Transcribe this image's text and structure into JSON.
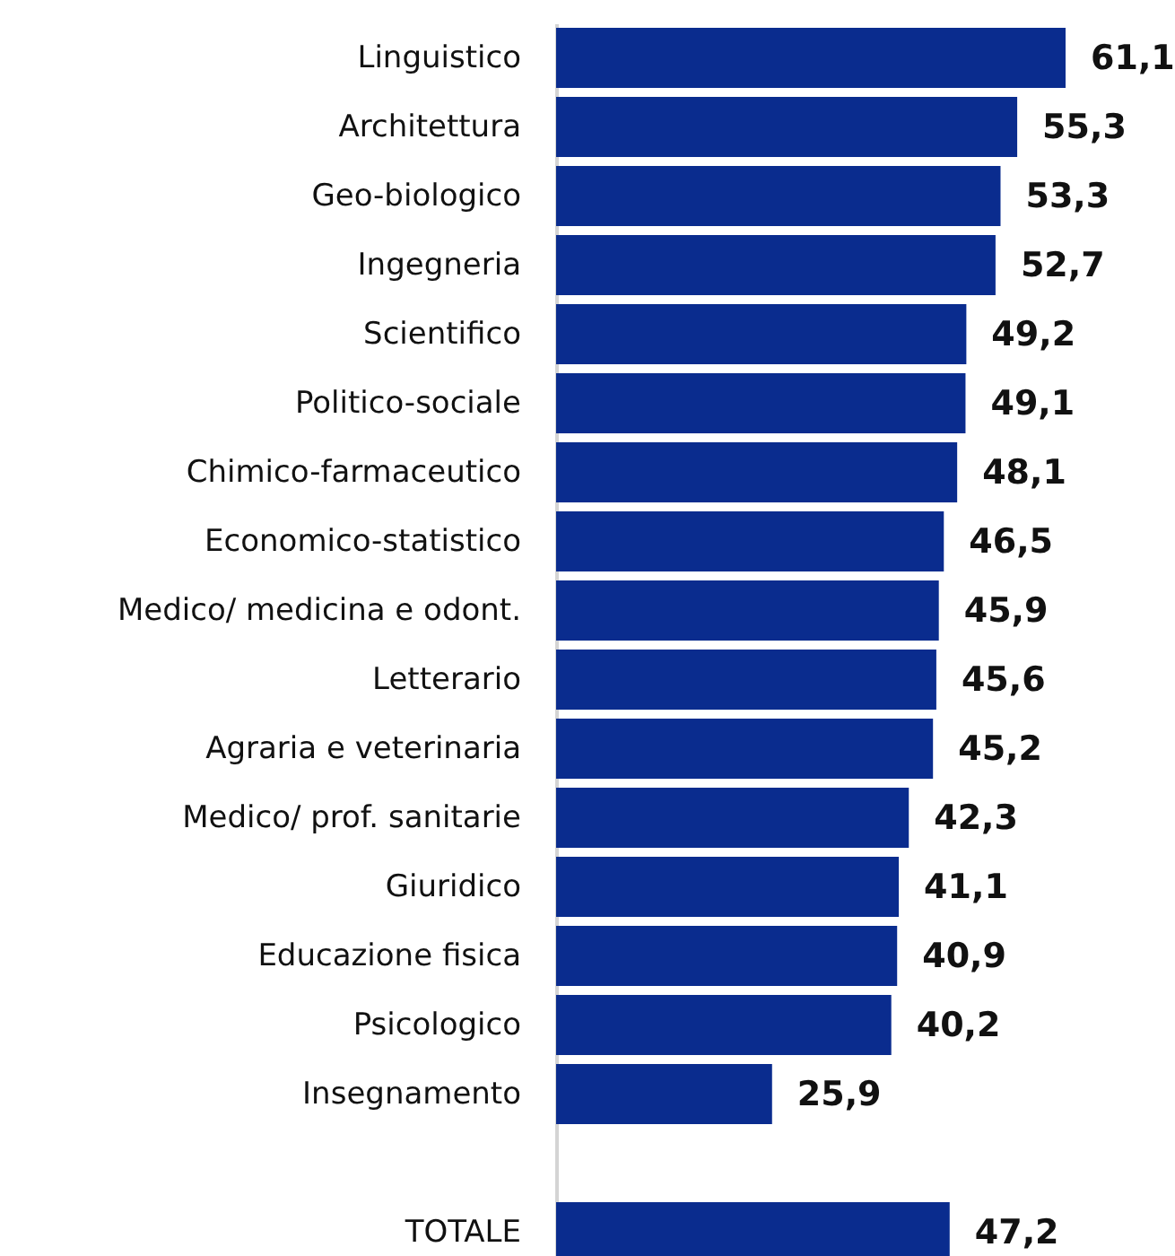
{
  "chart_data": {
    "type": "bar",
    "orientation": "horizontal",
    "color": "#0a2c8e",
    "categories": [
      "Linguistico",
      "Architettura",
      "Geo-biologico",
      "Ingegneria",
      "Scientifico",
      "Politico-sociale",
      "Chimico-farmaceutico",
      "Economico-statistico",
      "Medico/ medicina e odont.",
      "Letterario",
      "Agraria e veterinaria",
      "Medico/ prof. sanitarie",
      "Giuridico",
      "Educazione fisica",
      "Psicologico",
      "Insegnamento",
      null,
      "TOTALE"
    ],
    "values": [
      61.1,
      55.3,
      53.3,
      52.7,
      49.2,
      49.1,
      48.1,
      46.5,
      45.9,
      45.6,
      45.2,
      42.3,
      41.1,
      40.9,
      40.2,
      25.9,
      null,
      47.2
    ],
    "value_labels": [
      "61,1",
      "55,3",
      "53,3",
      "52,7",
      "49,2",
      "49,1",
      "48,1",
      "46,5",
      "45,9",
      "45,6",
      "45,2",
      "42,3",
      "41,1",
      "40,9",
      "40,2",
      "25,9",
      null,
      "47,2"
    ],
    "grid": false
  }
}
